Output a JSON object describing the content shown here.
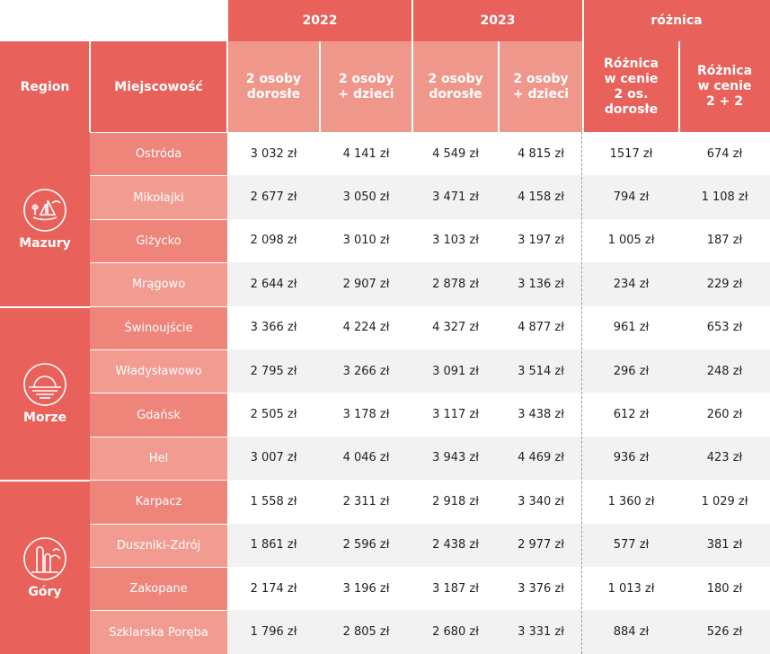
{
  "header": {
    "years": [
      "2022",
      "2023"
    ],
    "diff_title": "różnica",
    "region": "Region",
    "city": "Miejscowość",
    "sub": [
      "2 osoby\ndorosłe",
      "2 osoby\n+ dzieci",
      "2 osoby\ndorosłe",
      "2 osoby\n+ dzieci"
    ],
    "diff_cols": [
      "Różnica\nw cenie\n2 os.\ndorosłe",
      "Różnica\nw cenie\n2 + 2"
    ]
  },
  "regions": [
    {
      "name": "Mazury",
      "icon": "sailboat-icon"
    },
    {
      "name": "Morze",
      "icon": "sunset-icon"
    },
    {
      "name": "Góry",
      "icon": "mountain-trees-icon"
    }
  ],
  "rows": [
    {
      "city": "Ostróda",
      "values": [
        "3 032 zł",
        "4 141 zł",
        "4 549 zł",
        "4 815 zł",
        "1517 zł",
        "674 zł"
      ]
    },
    {
      "city": "Mikołajki",
      "values": [
        "2 677 zł",
        "3 050 zł",
        "3 471 zł",
        "4 158 zł",
        "794 zł",
        "1 108 zł"
      ]
    },
    {
      "city": "Giżycko",
      "values": [
        "2 098 zł",
        "3 010 zł",
        "3 103 zł",
        "3 197 zł",
        "1 005 zł",
        "187 zł"
      ]
    },
    {
      "city": "Mrągowo",
      "values": [
        "2 644 zł",
        "2 907 zł",
        "2 878 zł",
        "3 136 zł",
        "234 zł",
        "229 zł"
      ]
    },
    {
      "city": "Świnoujście",
      "values": [
        "3 366 zł",
        "4 224 zł",
        "4 327 zł",
        "4 877 zł",
        "961 zł",
        "653 zł"
      ]
    },
    {
      "city": "Władysławowo",
      "values": [
        "2 795 zł",
        "3 266 zł",
        "3 091 zł",
        "3 514 zł",
        "296 zł",
        "248 zł"
      ]
    },
    {
      "city": "Gdańsk",
      "values": [
        "2 505 zł",
        "3 178 zł",
        "3 117 zł",
        "3 438 zł",
        "612 zł",
        "260 zł"
      ]
    },
    {
      "city": "Hel",
      "values": [
        "3 007 zł",
        "4 046 zł",
        "3 943 zł",
        "4 469 zł",
        "936 zł",
        "423 zł"
      ]
    },
    {
      "city": "Karpacz",
      "values": [
        "1 558 zł",
        "2 311 zł",
        "2 918 zł",
        "3 340 zł",
        "1 360 zł",
        "1 029 zł"
      ]
    },
    {
      "city": "Duszniki-Zdrój",
      "values": [
        "1 861 zł",
        "2 596 zł",
        "2 438 zł",
        "2 977 zł",
        "577 zł",
        "381 zł"
      ]
    },
    {
      "city": "Zakopane",
      "values": [
        "2 174 zł",
        "3 196 zł",
        "3 187 zł",
        "3 376 zł",
        "1 013 zł",
        "180 zł"
      ]
    },
    {
      "city": "Szklarska Poręba",
      "values": [
        "1 796 zł",
        "2 805 zł",
        "2 680 zł",
        "3 331 zł",
        "884 zł",
        "526 zł"
      ]
    }
  ],
  "colors": {
    "accent": "#e8615a",
    "light": "#f0978c",
    "shade": "#f2f2f2"
  }
}
